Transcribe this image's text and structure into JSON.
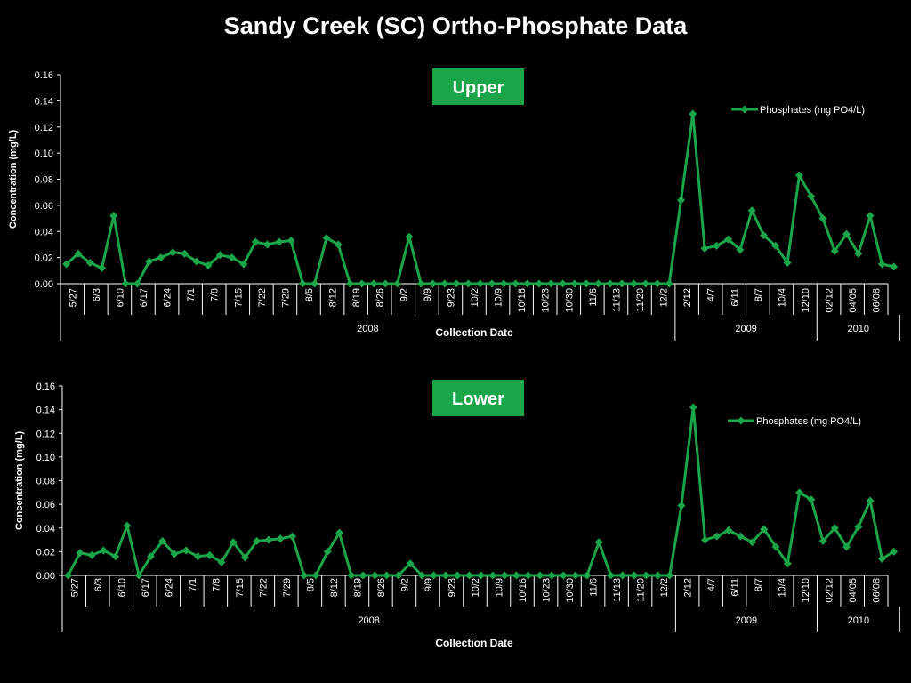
{
  "page": {
    "title": "Sandy Creek (SC) Ortho-Phosphate Data"
  },
  "colors": {
    "background": "#000000",
    "series": "#1aa548",
    "text": "#ffffff",
    "axis": "#ffffff"
  },
  "chart_data": [
    {
      "type": "line",
      "title": "Upper",
      "xlabel": "Collection Date",
      "ylabel": "Concentration (mg/L)",
      "ylim": [
        0,
        0.16
      ],
      "yticks": [
        "0.00",
        "0.02",
        "0.04",
        "0.06",
        "0.08",
        "0.10",
        "0.12",
        "0.14",
        "0.16"
      ],
      "legend": {
        "position": "top-right",
        "entries": [
          "Phosphates (mg PO4/L)"
        ]
      },
      "grid": false,
      "x_labels": [
        "5/27",
        "",
        "6/3",
        "",
        "6/10",
        "",
        "6/17",
        "",
        "6/24",
        "",
        "7/1",
        "",
        "7/8",
        "",
        "7/15",
        "",
        "7/22",
        "",
        "7/29",
        "",
        "8/5",
        "",
        "8/12",
        "",
        "8/19",
        "",
        "8/26",
        "",
        "9/2",
        "",
        "9/9",
        "",
        "9/23",
        "",
        "10/2",
        "",
        "10/9",
        "",
        "10/16",
        "",
        "10/23",
        "",
        "10/30",
        "",
        "11/6",
        "",
        "11/13",
        "",
        "11/20",
        "",
        "12/2",
        "",
        "2/12",
        "",
        "4/7",
        "",
        "6/11",
        "",
        "8/7",
        "",
        "10/4",
        "",
        "12/10",
        "",
        "02/12",
        "",
        "04/05",
        "",
        "06/08",
        ""
      ],
      "year_groups": [
        {
          "label": "2008",
          "start": 0,
          "end": 51
        },
        {
          "label": "2009",
          "start": 52,
          "end": 63
        },
        {
          "label": "2010",
          "start": 64,
          "end": 70
        }
      ],
      "series": [
        {
          "name": "Phosphates (mg PO4/L)",
          "values": [
            0.015,
            0.023,
            0.016,
            0.012,
            0.052,
            0,
            0,
            0.017,
            0.02,
            0.024,
            0.023,
            0.017,
            0.014,
            0.022,
            0.02,
            0.015,
            0.032,
            0.03,
            0.032,
            0.033,
            0,
            0,
            0.035,
            0.03,
            0,
            0,
            0,
            0,
            0,
            0.036,
            0,
            0,
            0,
            0,
            0,
            0,
            0,
            0,
            0,
            0,
            0,
            0,
            0,
            0,
            0,
            0,
            0,
            0,
            0,
            0,
            0,
            0,
            0.064,
            0.13,
            0.027,
            0.029,
            0.034,
            0.026,
            0.056,
            0.037,
            0.029,
            0.016,
            0.083,
            0.067,
            0.05,
            0.025,
            0.038,
            0.023,
            0.052,
            0.015,
            0.013
          ]
        }
      ]
    },
    {
      "type": "line",
      "title": "Lower",
      "xlabel": "Collection Date",
      "ylabel": "Concentration (mg/L)",
      "ylim": [
        0,
        0.16
      ],
      "yticks": [
        "0.00",
        "0.02",
        "0.04",
        "0.06",
        "0.08",
        "0.10",
        "0.12",
        "0.14",
        "0.16"
      ],
      "legend": {
        "position": "top-right",
        "entries": [
          "Phosphates (mg PO4/L)"
        ]
      },
      "grid": false,
      "x_labels": [
        "5/27",
        "",
        "6/3",
        "",
        "6/10",
        "",
        "6/17",
        "",
        "6/24",
        "",
        "7/1",
        "",
        "7/8",
        "",
        "7/15",
        "",
        "7/22",
        "",
        "7/29",
        "",
        "8/5",
        "",
        "8/12",
        "",
        "8/19",
        "",
        "8/26",
        "",
        "9/2",
        "",
        "9/9",
        "",
        "9/23",
        "",
        "10/2",
        "",
        "10/9",
        "",
        "10/16",
        "",
        "10/23",
        "",
        "10/30",
        "",
        "11/6",
        "",
        "11/13",
        "",
        "11/20",
        "",
        "12/2",
        "",
        "2/12",
        "",
        "4/7",
        "",
        "6/11",
        "",
        "8/7",
        "",
        "10/4",
        "",
        "12/10",
        "",
        "02/12",
        "",
        "04/05",
        "",
        "06/08",
        ""
      ],
      "year_groups": [
        {
          "label": "2008",
          "start": 0,
          "end": 51
        },
        {
          "label": "2009",
          "start": 52,
          "end": 63
        },
        {
          "label": "2010",
          "start": 64,
          "end": 70
        }
      ],
      "series": [
        {
          "name": "Phosphates (mg PO4/L)",
          "values": [
            0,
            0.019,
            0.017,
            0.021,
            0.016,
            0.042,
            0,
            0.016,
            0.029,
            0.018,
            0.021,
            0.016,
            0.017,
            0.011,
            0.028,
            0.015,
            0.029,
            0.03,
            0.031,
            0.033,
            0,
            0,
            0.02,
            0.036,
            0,
            0,
            0,
            0,
            0,
            0.01,
            0,
            0,
            0,
            0,
            0,
            0,
            0,
            0,
            0,
            0,
            0,
            0,
            0,
            0,
            0,
            0.028,
            0,
            0,
            0,
            0,
            0,
            0,
            0.059,
            0.142,
            0.03,
            0.033,
            0.038,
            0.033,
            0.028,
            0.039,
            0.024,
            0.01,
            0.07,
            0.064,
            0.029,
            0.04,
            0.024,
            0.041,
            0.063,
            0.014,
            0.02
          ]
        }
      ]
    }
  ]
}
